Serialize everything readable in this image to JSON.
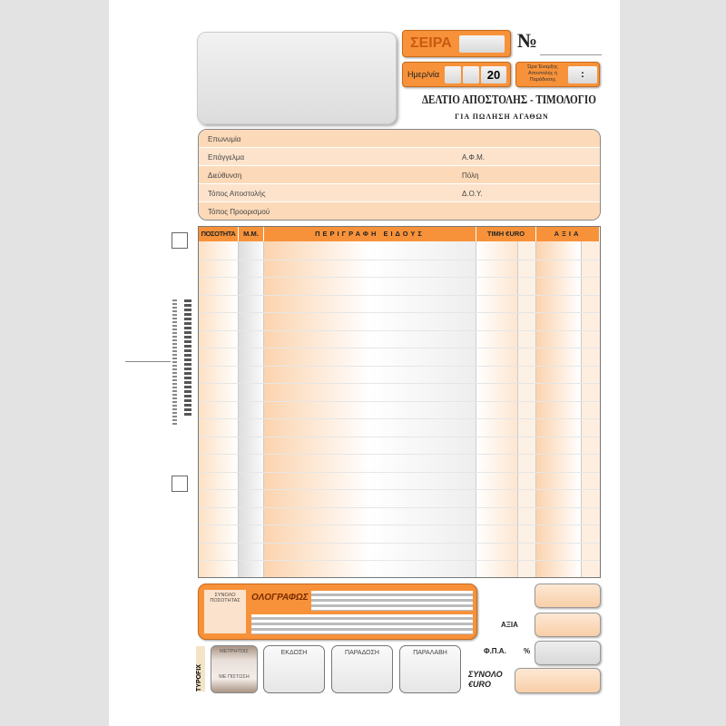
{
  "header": {
    "series_label": "ΣΕΙΡΑ",
    "number_label": "№",
    "date_label": "Ημερ/νία",
    "year_prefix": "20",
    "time_label": "Ώρα Έναρξης Αποστολής ή Παράδοσης",
    "time_sep": ":",
    "title": "ΔΕΛΤΙΟ ΑΠΟΣΤΟΛΗΣ - ΤΙΜΟΛΟΓΙΟ",
    "subtitle": "ΓΙΑ ΠΩΛΗΣΗ ΑΓΑΘΩΝ"
  },
  "customer": {
    "rows": [
      {
        "left": "Επωνυμία",
        "right": ""
      },
      {
        "left": "Επάγγελμα",
        "right": "Α.Φ.Μ."
      },
      {
        "left": "Διεύθυνση",
        "right": "Πόλη"
      },
      {
        "left": "Τόπος Αποστολής",
        "right": "Δ.Ο.Υ."
      },
      {
        "left": "Τόπος Προορισμού",
        "right": ""
      }
    ]
  },
  "table": {
    "columns": [
      "ΠΟΣΟΤΗΤΑ",
      "Μ.Μ.",
      "ΠΕΡΙΓΡΑΦΗ ΕΙΔΟΥΣ",
      "ΤΙΜΗ €URO",
      "ΑΞΙΑ"
    ]
  },
  "footer": {
    "total_qty_label": "ΣΥΝΟΛΟ ΠΟΣΟΤΗΤΑΣ",
    "in_words_label": "ΟΛΟΓΡΑΦΩΣ",
    "value_label": "ΑΞΙΑ",
    "vat_label": "Φ.Π.Α.",
    "percent": "%",
    "total_label": "ΣΥΝΟΛΟ €URO",
    "payment_top": "ΜΕΤΡΗΤΟΙΣ",
    "payment_bottom": "ΜΕ ΠΙΣΤΩΣΗ",
    "issue": "ΕΚΔΟΣΗ",
    "delivery": "ΠΑΡΑΔΟΣΗ",
    "receipt": "ΠΑΡΑΛΑΒΗ",
    "brand": "TYPOFIX"
  },
  "colors": {
    "accent": "#f7923a",
    "light": "#fde3cc"
  }
}
